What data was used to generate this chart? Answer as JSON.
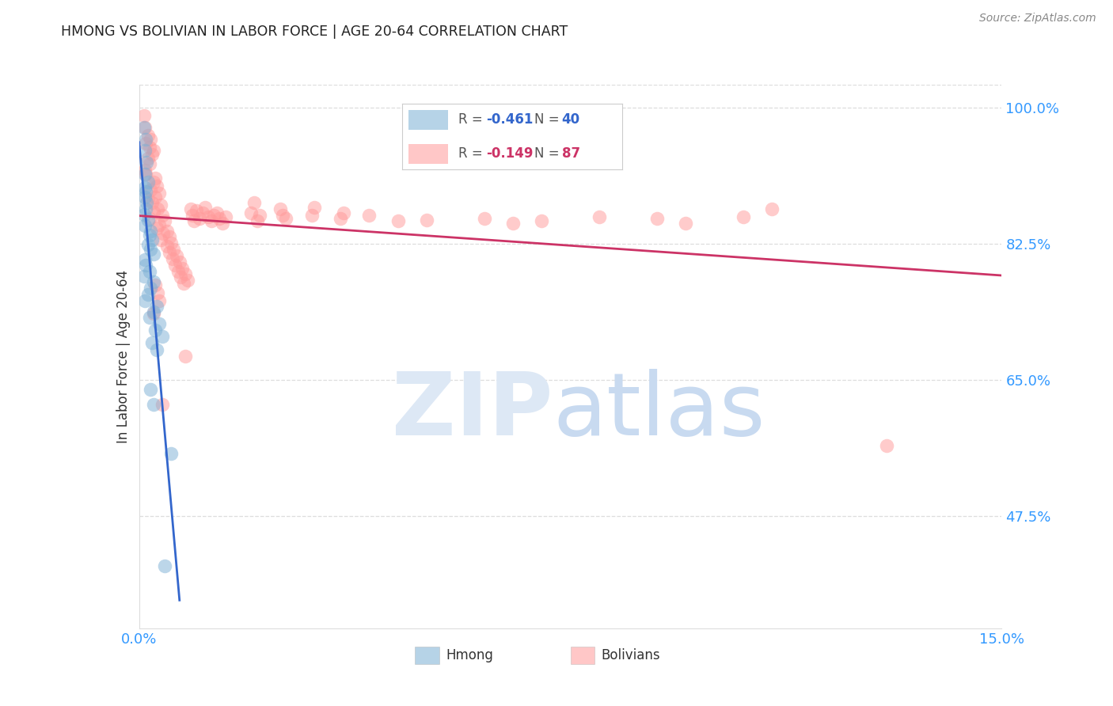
{
  "title": "HMONG VS BOLIVIAN IN LABOR FORCE | AGE 20-64 CORRELATION CHART",
  "source": "Source: ZipAtlas.com",
  "ylabel": "In Labor Force | Age 20-64",
  "xmin": 0.0,
  "xmax": 0.15,
  "ymin": 0.33,
  "ymax": 1.03,
  "ytick_vals": [
    0.475,
    0.65,
    0.825,
    1.0
  ],
  "ytick_labels": [
    "47.5%",
    "65.0%",
    "82.5%",
    "100.0%"
  ],
  "xtick_vals": [
    0.0,
    0.15
  ],
  "xtick_labels": [
    "0.0%",
    "15.0%"
  ],
  "hmong_color": "#7bafd4",
  "bolivian_color": "#ff9999",
  "reg_hmong_color": "#3366cc",
  "reg_bolivian_color": "#cc3366",
  "reg_dash_color": "#bbbbbb",
  "watermark_zip_color": "#dde8f5",
  "watermark_atlas_color": "#c8daf0",
  "title_color": "#222222",
  "source_color": "#888888",
  "ylabel_color": "#333333",
  "tick_color": "#3399ff",
  "grid_color": "#dddddd",
  "legend_border_color": "#cccccc",
  "legend_text_color": "#555555",
  "legend_R_color_blue": "#3366cc",
  "legend_R_color_pink": "#cc3366",
  "hmong_points": [
    [
      0.0008,
      0.975
    ],
    [
      0.0012,
      0.96
    ],
    [
      0.001,
      0.945
    ],
    [
      0.0013,
      0.93
    ],
    [
      0.001,
      0.915
    ],
    [
      0.0015,
      0.905
    ],
    [
      0.001,
      0.898
    ],
    [
      0.0012,
      0.892
    ],
    [
      0.001,
      0.885
    ],
    [
      0.0013,
      0.878
    ],
    [
      0.0012,
      0.87
    ],
    [
      0.0008,
      0.863
    ],
    [
      0.0015,
      0.856
    ],
    [
      0.001,
      0.849
    ],
    [
      0.002,
      0.842
    ],
    [
      0.0018,
      0.836
    ],
    [
      0.0022,
      0.83
    ],
    [
      0.0015,
      0.824
    ],
    [
      0.002,
      0.818
    ],
    [
      0.0025,
      0.812
    ],
    [
      0.001,
      0.805
    ],
    [
      0.0012,
      0.798
    ],
    [
      0.0018,
      0.79
    ],
    [
      0.0008,
      0.783
    ],
    [
      0.0025,
      0.776
    ],
    [
      0.002,
      0.768
    ],
    [
      0.0015,
      0.76
    ],
    [
      0.001,
      0.752
    ],
    [
      0.003,
      0.745
    ],
    [
      0.0025,
      0.738
    ],
    [
      0.0018,
      0.73
    ],
    [
      0.0035,
      0.722
    ],
    [
      0.0028,
      0.714
    ],
    [
      0.004,
      0.706
    ],
    [
      0.0022,
      0.698
    ],
    [
      0.003,
      0.689
    ],
    [
      0.002,
      0.638
    ],
    [
      0.0025,
      0.618
    ],
    [
      0.0055,
      0.555
    ],
    [
      0.0045,
      0.41
    ]
  ],
  "bolivian_points": [
    [
      0.0008,
      0.99
    ],
    [
      0.001,
      0.975
    ],
    [
      0.0015,
      0.965
    ],
    [
      0.0012,
      0.955
    ],
    [
      0.002,
      0.96
    ],
    [
      0.0018,
      0.95
    ],
    [
      0.0025,
      0.945
    ],
    [
      0.0022,
      0.94
    ],
    [
      0.0015,
      0.935
    ],
    [
      0.0018,
      0.928
    ],
    [
      0.001,
      0.92
    ],
    [
      0.0012,
      0.915
    ],
    [
      0.0028,
      0.91
    ],
    [
      0.0025,
      0.905
    ],
    [
      0.003,
      0.9
    ],
    [
      0.002,
      0.895
    ],
    [
      0.0035,
      0.89
    ],
    [
      0.0028,
      0.885
    ],
    [
      0.0015,
      0.882
    ],
    [
      0.0022,
      0.878
    ],
    [
      0.0038,
      0.875
    ],
    [
      0.0032,
      0.87
    ],
    [
      0.0025,
      0.866
    ],
    [
      0.004,
      0.862
    ],
    [
      0.0018,
      0.858
    ],
    [
      0.0045,
      0.855
    ],
    [
      0.0035,
      0.85
    ],
    [
      0.003,
      0.846
    ],
    [
      0.0048,
      0.842
    ],
    [
      0.0042,
      0.838
    ],
    [
      0.0052,
      0.834
    ],
    [
      0.0038,
      0.83
    ],
    [
      0.0055,
      0.826
    ],
    [
      0.0048,
      0.822
    ],
    [
      0.006,
      0.818
    ],
    [
      0.0052,
      0.814
    ],
    [
      0.0065,
      0.81
    ],
    [
      0.0058,
      0.806
    ],
    [
      0.007,
      0.802
    ],
    [
      0.0062,
      0.798
    ],
    [
      0.0075,
      0.794
    ],
    [
      0.0068,
      0.79
    ],
    [
      0.008,
      0.786
    ],
    [
      0.0072,
      0.782
    ],
    [
      0.0085,
      0.778
    ],
    [
      0.0078,
      0.774
    ],
    [
      0.009,
      0.87
    ],
    [
      0.0092,
      0.862
    ],
    [
      0.0095,
      0.855
    ],
    [
      0.01,
      0.868
    ],
    [
      0.0105,
      0.858
    ],
    [
      0.011,
      0.865
    ],
    [
      0.0115,
      0.872
    ],
    [
      0.012,
      0.86
    ],
    [
      0.013,
      0.862
    ],
    [
      0.0125,
      0.855
    ],
    [
      0.014,
      0.858
    ],
    [
      0.0135,
      0.865
    ],
    [
      0.015,
      0.86
    ],
    [
      0.0145,
      0.852
    ],
    [
      0.02,
      0.878
    ],
    [
      0.0195,
      0.865
    ],
    [
      0.0205,
      0.855
    ],
    [
      0.021,
      0.862
    ],
    [
      0.025,
      0.862
    ],
    [
      0.0245,
      0.87
    ],
    [
      0.0255,
      0.858
    ],
    [
      0.03,
      0.862
    ],
    [
      0.0305,
      0.872
    ],
    [
      0.035,
      0.858
    ],
    [
      0.0355,
      0.865
    ],
    [
      0.04,
      0.862
    ],
    [
      0.045,
      0.855
    ],
    [
      0.05,
      0.856
    ],
    [
      0.06,
      0.858
    ],
    [
      0.065,
      0.852
    ],
    [
      0.07,
      0.855
    ],
    [
      0.08,
      0.86
    ],
    [
      0.09,
      0.858
    ],
    [
      0.095,
      0.852
    ],
    [
      0.105,
      0.86
    ],
    [
      0.11,
      0.87
    ],
    [
      0.0028,
      0.772
    ],
    [
      0.0032,
      0.762
    ],
    [
      0.0035,
      0.752
    ],
    [
      0.0025,
      0.735
    ],
    [
      0.008,
      0.68
    ],
    [
      0.13,
      0.565
    ],
    [
      0.004,
      0.618
    ]
  ]
}
